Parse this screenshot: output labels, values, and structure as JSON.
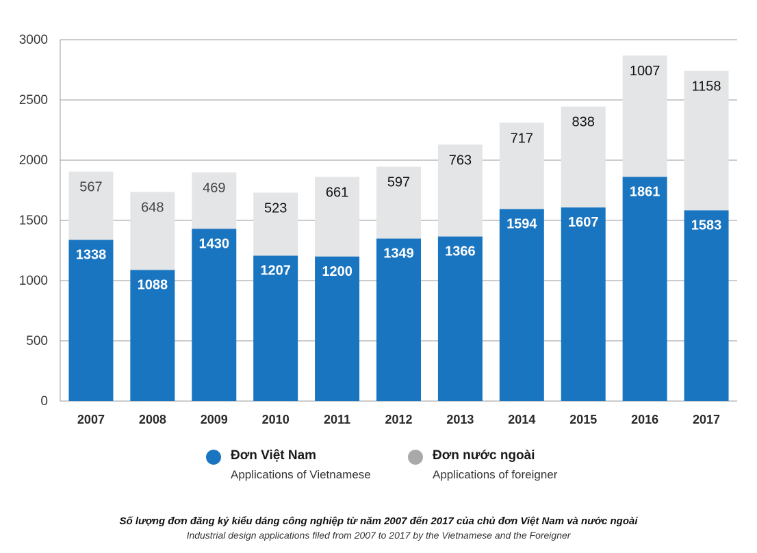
{
  "chart_data": {
    "type": "bar",
    "stacked": true,
    "categories": [
      "2007",
      "2008",
      "2009",
      "2010",
      "2011",
      "2012",
      "2013",
      "2014",
      "2015",
      "2016",
      "2017"
    ],
    "series": [
      {
        "name": "Đơn Việt Nam",
        "values": [
          1338,
          1088,
          1430,
          1207,
          1200,
          1349,
          1366,
          1594,
          1607,
          1861,
          1583
        ]
      },
      {
        "name": "Đơn nước ngoài",
        "values": [
          567,
          648,
          469,
          523,
          661,
          597,
          763,
          717,
          838,
          1007,
          1158
        ]
      }
    ],
    "ylim": [
      0,
      3000
    ],
    "yticks": [
      0,
      500,
      1000,
      1500,
      2000,
      2500,
      3000
    ],
    "grid": true,
    "legend_position": "bottom",
    "colors": {
      "vietnamese": "#1a75c0",
      "foreign": "#e4e5e7",
      "grid": "#999999"
    }
  },
  "legend": {
    "items": [
      {
        "label": "Đơn Việt Nam",
        "sublabel": "Applications of Vietnamese",
        "color": "#1a75c0"
      },
      {
        "label": "Đơn nước ngoài",
        "sublabel": "Applications of foreigner",
        "color": "#a8a9ab"
      }
    ]
  },
  "caption": {
    "vi": "Số lượng đơn đăng ký kiểu dáng công nghiệp từ năm 2007 đến 2017 của chủ đơn Việt Nam và nước ngoài",
    "en": "Industrial design applications filed from 2007 to 2017 by the Vietnamese and the Foreigner"
  }
}
